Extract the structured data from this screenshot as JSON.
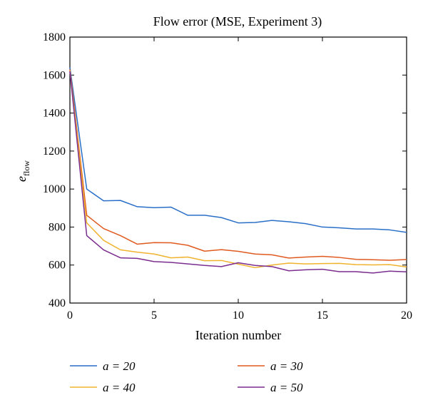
{
  "chart_data": {
    "type": "line",
    "title": "Flow error (MSE, Experiment 3)",
    "xlabel": "Iteration number",
    "ylabel": "e",
    "ylabel_sub": "flow",
    "xlim": [
      0,
      20
    ],
    "ylim": [
      400,
      1800
    ],
    "xticks": [
      0,
      5,
      10,
      15,
      20
    ],
    "yticks": [
      400,
      600,
      800,
      1000,
      1200,
      1400,
      1600,
      1800
    ],
    "grid": false,
    "legend_position": "below",
    "x": [
      0,
      1,
      2,
      3,
      4,
      5,
      6,
      7,
      8,
      9,
      10,
      11,
      12,
      13,
      14,
      15,
      16,
      17,
      18,
      19,
      20
    ],
    "series": [
      {
        "name": "a = 20",
        "color": "#2a6fc7",
        "values": [
          1640,
          1000,
          938,
          940,
          907,
          902,
          905,
          862,
          862,
          850,
          822,
          824,
          835,
          828,
          818,
          800,
          796,
          790,
          790,
          785,
          772
        ]
      },
      {
        "name": "a = 30",
        "color": "#e05a1f",
        "values": [
          1630,
          862,
          792,
          755,
          710,
          718,
          717,
          704,
          673,
          681,
          672,
          658,
          654,
          637,
          642,
          646,
          640,
          630,
          628,
          625,
          629
        ]
      },
      {
        "name": "a = 40",
        "color": "#f0b32e",
        "values": [
          1625,
          822,
          730,
          680,
          668,
          658,
          638,
          642,
          623,
          624,
          605,
          586,
          600,
          610,
          606,
          608,
          609,
          602,
          601,
          602,
          590
        ]
      },
      {
        "name": "a = 50",
        "color": "#7b2d8e",
        "values": [
          1620,
          755,
          680,
          638,
          635,
          618,
          614,
          606,
          598,
          592,
          612,
          598,
          592,
          570,
          575,
          578,
          565,
          565,
          558,
          568,
          564
        ]
      }
    ]
  }
}
